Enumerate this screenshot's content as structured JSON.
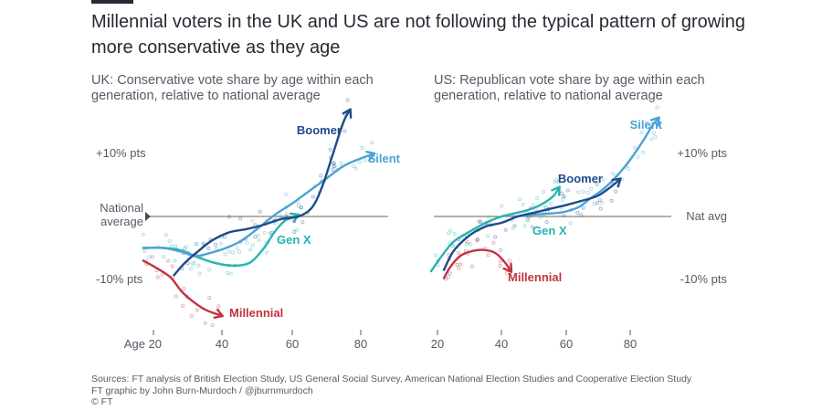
{
  "title": "Millennial voters in the UK and US are not following the typical pattern of growing more conservative as they age",
  "footer": {
    "sources": "Sources: FT analysis of British Election Study, US General Social Survey, American National Election Studies and Cooperative Election Study",
    "credit": "FT graphic by John Burn-Murdoch / @jburnmurdoch",
    "copyright": "© FT"
  },
  "colors": {
    "Boomer": "#1f4a8c",
    "Silent": "#4aa3d3",
    "Gen X": "#27b3b0",
    "Millennial": "#c0333f",
    "baseline": "#8c7f70",
    "text": "#262a33"
  },
  "chart_data": [
    {
      "type": "line",
      "id": "uk",
      "title": "UK: Conservative vote share by age within each generation, relative to national average",
      "x_ticks": [
        20,
        40,
        60,
        80
      ],
      "x_tick_labels": [
        "Age 20",
        "40",
        "60",
        "80"
      ],
      "xlim": [
        17,
        86
      ],
      "ylim": [
        -17,
        20
      ],
      "y_ticks": [
        {
          "value": 10,
          "label": "+10% pts"
        },
        {
          "value": 0,
          "label": "National average"
        },
        {
          "value": -10,
          "label": "-10% pts"
        }
      ],
      "series": [
        {
          "name": "Silent",
          "points": [
            [
              17,
              -5
            ],
            [
              23,
              -5
            ],
            [
              28,
              -5.6
            ],
            [
              32,
              -6.3
            ],
            [
              35,
              -6
            ],
            [
              40,
              -5.2
            ],
            [
              45,
              -4
            ],
            [
              50,
              -2
            ],
            [
              55,
              0.2
            ],
            [
              60,
              2
            ],
            [
              65,
              4
            ],
            [
              70,
              6
            ],
            [
              75,
              8
            ],
            [
              80,
              9.2
            ],
            [
              84,
              10
            ]
          ]
        },
        {
          "name": "Gen X",
          "points": [
            [
              17,
              -5
            ],
            [
              23,
              -5
            ],
            [
              28,
              -5.4
            ],
            [
              33,
              -6.5
            ],
            [
              38,
              -7.4
            ],
            [
              43,
              -7.8
            ],
            [
              48,
              -7.3
            ],
            [
              52,
              -5
            ],
            [
              55,
              -2.5
            ],
            [
              58,
              -0.7
            ],
            [
              62,
              0.3
            ]
          ]
        },
        {
          "name": "Boomer",
          "points": [
            [
              26,
              -9.3
            ],
            [
              29,
              -7.4
            ],
            [
              33,
              -5.5
            ],
            [
              37,
              -3.8
            ],
            [
              42,
              -2.5
            ],
            [
              47,
              -2
            ],
            [
              52,
              -1.3
            ],
            [
              57,
              -0.4
            ],
            [
              62,
              0
            ],
            [
              66,
              1.5
            ],
            [
              69,
              5
            ],
            [
              72,
              10
            ],
            [
              75,
              15
            ],
            [
              77,
              17
            ]
          ]
        },
        {
          "name": "Millennial",
          "points": [
            [
              17,
              -7
            ],
            [
              21,
              -8.2
            ],
            [
              25,
              -9.7
            ],
            [
              28,
              -11.8
            ],
            [
              31,
              -13.3
            ],
            [
              35,
              -14.8
            ],
            [
              40,
              -15.8
            ]
          ]
        }
      ]
    },
    {
      "type": "line",
      "id": "us",
      "title": "US: Republican vote share by age within each generation, relative to national average",
      "x_ticks": [
        20,
        40,
        60,
        80
      ],
      "x_tick_labels": [
        "20",
        "40",
        "60",
        "80"
      ],
      "xlim": [
        18,
        92
      ],
      "ylim": [
        -17,
        20
      ],
      "y_ticks": [
        {
          "value": 10,
          "label": "+10% pts"
        },
        {
          "value": 0,
          "label": "Nat avg"
        },
        {
          "value": -10,
          "label": "-10% pts"
        }
      ],
      "series": [
        {
          "name": "Silent",
          "points": [
            [
              44,
              0
            ],
            [
              50,
              0.3
            ],
            [
              56,
              0.5
            ],
            [
              60,
              0.8
            ],
            [
              64,
              1.5
            ],
            [
              68,
              3
            ],
            [
              72,
              4.5
            ],
            [
              76,
              6.5
            ],
            [
              80,
              9
            ],
            [
              84,
              12
            ],
            [
              87,
              14.5
            ],
            [
              89,
              15.7
            ]
          ]
        },
        {
          "name": "Boomer",
          "points": [
            [
              22,
              -8.5
            ],
            [
              25,
              -5.5
            ],
            [
              30,
              -3
            ],
            [
              35,
              -1.6
            ],
            [
              40,
              -1
            ],
            [
              45,
              0
            ],
            [
              50,
              0.6
            ],
            [
              55,
              1.2
            ],
            [
              60,
              1.8
            ],
            [
              65,
              2.5
            ],
            [
              70,
              3.3
            ],
            [
              74,
              4.7
            ],
            [
              77,
              6
            ]
          ]
        },
        {
          "name": "Gen X",
          "points": [
            [
              18,
              -8.7
            ],
            [
              21,
              -6.5
            ],
            [
              25,
              -4
            ],
            [
              30,
              -2.4
            ],
            [
              35,
              -1
            ],
            [
              40,
              0
            ],
            [
              44,
              0.5
            ],
            [
              48,
              1
            ],
            [
              52,
              1.8
            ],
            [
              56,
              3.2
            ],
            [
              58,
              4.7
            ]
          ]
        },
        {
          "name": "Millennial",
          "points": [
            [
              22,
              -9.8
            ],
            [
              24,
              -8
            ],
            [
              27,
              -6.3
            ],
            [
              30,
              -5.6
            ],
            [
              34,
              -5.3
            ],
            [
              38,
              -5.8
            ],
            [
              41,
              -7.3
            ],
            [
              43,
              -8.8
            ]
          ]
        }
      ]
    }
  ]
}
